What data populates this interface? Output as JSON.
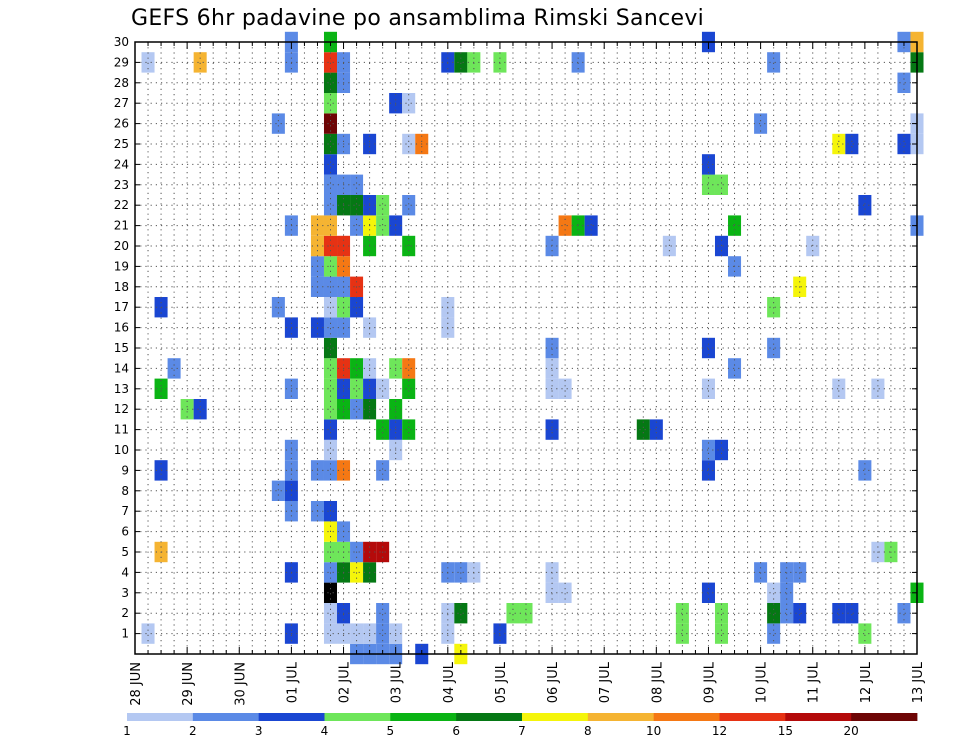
{
  "chart_data": {
    "type": "heatmap",
    "title": "GEFS 6hr padavine po ansamblima Rimski Sancevi",
    "xlabel": "",
    "ylabel": "",
    "x_ticks": [
      "28 JUN",
      "29 JUN",
      "30 JUN",
      "01 JUL",
      "02 JUL",
      "03 JUL",
      "04 JUL",
      "05 JUL",
      "06 JUL",
      "07 JUL",
      "08 JUL",
      "09 JUL",
      "10 JUL",
      "11 JUL",
      "12 JUL",
      "13 JUL"
    ],
    "xlim": [
      0,
      60
    ],
    "x_unit": "6-hour steps from 28 JUN",
    "y_ticks": [
      1,
      2,
      3,
      4,
      5,
      6,
      7,
      8,
      9,
      10,
      11,
      12,
      13,
      14,
      15,
      16,
      17,
      18,
      19,
      20,
      21,
      22,
      23,
      24,
      25,
      26,
      27,
      28,
      29,
      30
    ],
    "ylim": [
      0,
      30
    ],
    "grid": true,
    "colorbar": {
      "labels": [
        "1",
        "2",
        "3",
        "4",
        "5",
        "6",
        "7",
        "8",
        "10",
        "12",
        "15",
        "20"
      ],
      "colors": [
        "#b4c8f2",
        "#5b8ae6",
        "#1a46d2",
        "#6ee65a",
        "#0ab414",
        "#057814",
        "#f5f50a",
        "#f5b432",
        "#f57814",
        "#e63214",
        "#b40a0a",
        "#6e0505"
      ]
    },
    "cells": [
      [
        1,
        1,
        0
      ],
      [
        1,
        29,
        0
      ],
      [
        5,
        29,
        7
      ],
      [
        2,
        13,
        4
      ],
      [
        2,
        5,
        7
      ],
      [
        2,
        9,
        2
      ],
      [
        2,
        17,
        2
      ],
      [
        3,
        14,
        1
      ],
      [
        4,
        12,
        3
      ],
      [
        5,
        12,
        2
      ],
      [
        11,
        8,
        1
      ],
      [
        11,
        17,
        1
      ],
      [
        11,
        26,
        1
      ],
      [
        12,
        1,
        2
      ],
      [
        12,
        4,
        2
      ],
      [
        12,
        7,
        1
      ],
      [
        12,
        8,
        2
      ],
      [
        12,
        9,
        1
      ],
      [
        12,
        10,
        1
      ],
      [
        12,
        13,
        1
      ],
      [
        12,
        16,
        2
      ],
      [
        12,
        21,
        1
      ],
      [
        12,
        29,
        1
      ],
      [
        12,
        30,
        1
      ],
      [
        14,
        7,
        1
      ],
      [
        14,
        9,
        1
      ],
      [
        14,
        16,
        2
      ],
      [
        14,
        18,
        1
      ],
      [
        14,
        19,
        1
      ],
      [
        14,
        20,
        7
      ],
      [
        14,
        21,
        7
      ],
      [
        15,
        1,
        0
      ],
      [
        15,
        2,
        0
      ],
      [
        15,
        3,
        12
      ],
      [
        15,
        4,
        1
      ],
      [
        15,
        5,
        3
      ],
      [
        15,
        6,
        6
      ],
      [
        15,
        7,
        2
      ],
      [
        15,
        9,
        1
      ],
      [
        15,
        10,
        0
      ],
      [
        15,
        11,
        2
      ],
      [
        15,
        12,
        3
      ],
      [
        15,
        13,
        3
      ],
      [
        15,
        14,
        3
      ],
      [
        15,
        15,
        5
      ],
      [
        15,
        16,
        1
      ],
      [
        15,
        17,
        0
      ],
      [
        15,
        18,
        1
      ],
      [
        15,
        19,
        3
      ],
      [
        15,
        20,
        9
      ],
      [
        15,
        21,
        7
      ],
      [
        15,
        22,
        1
      ],
      [
        15,
        23,
        1
      ],
      [
        15,
        24,
        2
      ],
      [
        15,
        25,
        5
      ],
      [
        15,
        26,
        11
      ],
      [
        15,
        27,
        3
      ],
      [
        15,
        28,
        5
      ],
      [
        15,
        29,
        9
      ],
      [
        15,
        30,
        4
      ],
      [
        16,
        1,
        0
      ],
      [
        16,
        2,
        2
      ],
      [
        16,
        4,
        5
      ],
      [
        16,
        5,
        3
      ],
      [
        16,
        6,
        1
      ],
      [
        16,
        9,
        8
      ],
      [
        16,
        12,
        4
      ],
      [
        16,
        13,
        2
      ],
      [
        16,
        14,
        9
      ],
      [
        16,
        16,
        1
      ],
      [
        16,
        17,
        3
      ],
      [
        16,
        18,
        1
      ],
      [
        16,
        19,
        8
      ],
      [
        16,
        20,
        9
      ],
      [
        16,
        22,
        5
      ],
      [
        16,
        23,
        1
      ],
      [
        16,
        25,
        1
      ],
      [
        16,
        28,
        1
      ],
      [
        16,
        29,
        1
      ],
      [
        17,
        0,
        1
      ],
      [
        17,
        1,
        0
      ],
      [
        17,
        4,
        6
      ],
      [
        17,
        5,
        1
      ],
      [
        17,
        12,
        1
      ],
      [
        17,
        13,
        3
      ],
      [
        17,
        14,
        4
      ],
      [
        17,
        17,
        2
      ],
      [
        17,
        18,
        9
      ],
      [
        17,
        21,
        1
      ],
      [
        17,
        22,
        5
      ],
      [
        17,
        23,
        1
      ],
      [
        18,
        0,
        1
      ],
      [
        18,
        1,
        0
      ],
      [
        18,
        4,
        5
      ],
      [
        18,
        5,
        10
      ],
      [
        18,
        12,
        5
      ],
      [
        18,
        13,
        2
      ],
      [
        18,
        14,
        0
      ],
      [
        18,
        16,
        0
      ],
      [
        18,
        20,
        4
      ],
      [
        18,
        21,
        6
      ],
      [
        18,
        22,
        2
      ],
      [
        18,
        25,
        2
      ],
      [
        19,
        0,
        1
      ],
      [
        19,
        1,
        1
      ],
      [
        19,
        2,
        1
      ],
      [
        19,
        5,
        10
      ],
      [
        19,
        9,
        1
      ],
      [
        19,
        11,
        4
      ],
      [
        19,
        13,
        0
      ],
      [
        19,
        21,
        3
      ],
      [
        19,
        22,
        3
      ],
      [
        20,
        0,
        1
      ],
      [
        20,
        1,
        0
      ],
      [
        20,
        10,
        0
      ],
      [
        20,
        11,
        2
      ],
      [
        20,
        12,
        4
      ],
      [
        20,
        14,
        3
      ],
      [
        20,
        21,
        2
      ],
      [
        20,
        27,
        2
      ],
      [
        21,
        11,
        4
      ],
      [
        21,
        13,
        4
      ],
      [
        21,
        14,
        8
      ],
      [
        21,
        20,
        4
      ],
      [
        21,
        22,
        1
      ],
      [
        21,
        25,
        0
      ],
      [
        21,
        27,
        0
      ],
      [
        22,
        0,
        2
      ],
      [
        22,
        25,
        8
      ],
      [
        24,
        1,
        0
      ],
      [
        24,
        2,
        0
      ],
      [
        24,
        4,
        1
      ],
      [
        24,
        16,
        0
      ],
      [
        24,
        17,
        0
      ],
      [
        24,
        29,
        2
      ],
      [
        25,
        0,
        6
      ],
      [
        25,
        2,
        5
      ],
      [
        25,
        4,
        1
      ],
      [
        25,
        29,
        5
      ],
      [
        26,
        4,
        0
      ],
      [
        26,
        29,
        3
      ],
      [
        28,
        1,
        2
      ],
      [
        28,
        29,
        3
      ],
      [
        29,
        2,
        3
      ],
      [
        30,
        2,
        3
      ],
      [
        32,
        3,
        0
      ],
      [
        32,
        4,
        0
      ],
      [
        32,
        11,
        2
      ],
      [
        32,
        13,
        0
      ],
      [
        32,
        14,
        0
      ],
      [
        32,
        15,
        1
      ],
      [
        32,
        20,
        1
      ],
      [
        33,
        3,
        0
      ],
      [
        33,
        13,
        0
      ],
      [
        33,
        21,
        8
      ],
      [
        34,
        21,
        4
      ],
      [
        34,
        29,
        1
      ],
      [
        35,
        21,
        2
      ],
      [
        39,
        11,
        5
      ],
      [
        40,
        11,
        2
      ],
      [
        41,
        20,
        0
      ],
      [
        42,
        1,
        3
      ],
      [
        42,
        2,
        3
      ],
      [
        44,
        3,
        2
      ],
      [
        44,
        9,
        2
      ],
      [
        44,
        10,
        1
      ],
      [
        44,
        13,
        0
      ],
      [
        44,
        15,
        2
      ],
      [
        44,
        23,
        3
      ],
      [
        44,
        24,
        2
      ],
      [
        44,
        30,
        2
      ],
      [
        45,
        1,
        3
      ],
      [
        45,
        2,
        3
      ],
      [
        45,
        10,
        2
      ],
      [
        45,
        20,
        2
      ],
      [
        45,
        23,
        3
      ],
      [
        46,
        14,
        1
      ],
      [
        46,
        19,
        1
      ],
      [
        46,
        21,
        4
      ],
      [
        48,
        4,
        1
      ],
      [
        48,
        26,
        1
      ],
      [
        49,
        1,
        1
      ],
      [
        49,
        2,
        5
      ],
      [
        49,
        3,
        0
      ],
      [
        49,
        15,
        1
      ],
      [
        49,
        17,
        3
      ],
      [
        49,
        29,
        1
      ],
      [
        50,
        2,
        1
      ],
      [
        50,
        3,
        1
      ],
      [
        50,
        4,
        1
      ],
      [
        51,
        2,
        2
      ],
      [
        51,
        4,
        1
      ],
      [
        51,
        18,
        6
      ],
      [
        52,
        20,
        0
      ],
      [
        54,
        2,
        2
      ],
      [
        54,
        13,
        0
      ],
      [
        54,
        25,
        6
      ],
      [
        55,
        2,
        2
      ],
      [
        55,
        25,
        2
      ],
      [
        56,
        1,
        3
      ],
      [
        56,
        9,
        1
      ],
      [
        56,
        22,
        2
      ],
      [
        57,
        5,
        0
      ],
      [
        57,
        13,
        0
      ],
      [
        58,
        5,
        3
      ],
      [
        59,
        2,
        1
      ],
      [
        59,
        25,
        2
      ],
      [
        59,
        28,
        1
      ],
      [
        59,
        30,
        1
      ],
      [
        60,
        3,
        4
      ],
      [
        60,
        21,
        1
      ],
      [
        60,
        25,
        0
      ],
      [
        60,
        26,
        0
      ],
      [
        60,
        29,
        5
      ],
      [
        60,
        30,
        7
      ]
    ]
  }
}
